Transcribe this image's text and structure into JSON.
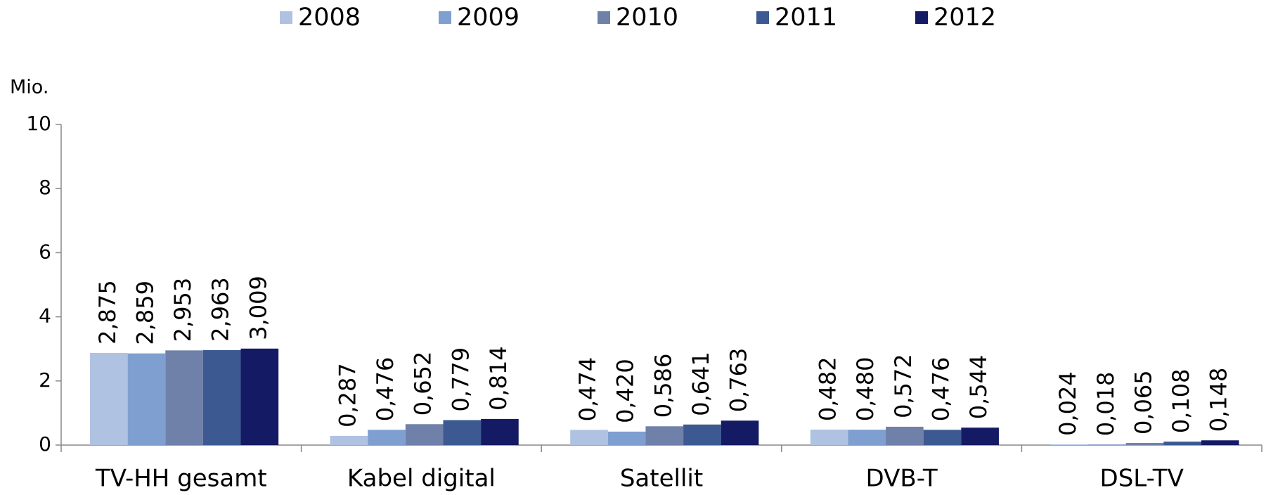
{
  "chart_data": {
    "type": "bar",
    "y_label": "Mio.",
    "categories": [
      "TV-HH gesamt",
      "Kabel digital",
      "Satellit",
      "DVB-T",
      "DSL-TV"
    ],
    "series": [
      {
        "name": "2008",
        "color": "#b0c2e2",
        "values": [
          2.875,
          0.287,
          0.474,
          0.482,
          0.024
        ],
        "value_labels": [
          "2,875",
          "0,287",
          "0,474",
          "0,482",
          "0,024"
        ]
      },
      {
        "name": "2009",
        "color": "#7f9fd0",
        "values": [
          2.859,
          0.476,
          0.42,
          0.48,
          0.018
        ],
        "value_labels": [
          "2,859",
          "0,476",
          "0,420",
          "0,480",
          "0,018"
        ]
      },
      {
        "name": "2010",
        "color": "#6f81a8",
        "values": [
          2.953,
          0.652,
          0.586,
          0.572,
          0.065
        ],
        "value_labels": [
          "2,953",
          "0,652",
          "0,586",
          "0,572",
          "0,065"
        ]
      },
      {
        "name": "2011",
        "color": "#3c5a91",
        "values": [
          2.963,
          0.779,
          0.641,
          0.476,
          0.108
        ],
        "value_labels": [
          "2,963",
          "0,779",
          "0,641",
          "0,476",
          "0,108"
        ]
      },
      {
        "name": "2012",
        "color": "#141a63",
        "values": [
          3.009,
          0.814,
          0.763,
          0.544,
          0.148
        ],
        "value_labels": [
          "3,009",
          "0,814",
          "0,763",
          "0,544",
          "0,148"
        ]
      }
    ],
    "ylim": [
      0,
      10
    ],
    "yticks": [
      0,
      2,
      4,
      6,
      8,
      10
    ],
    "legend": "top"
  }
}
